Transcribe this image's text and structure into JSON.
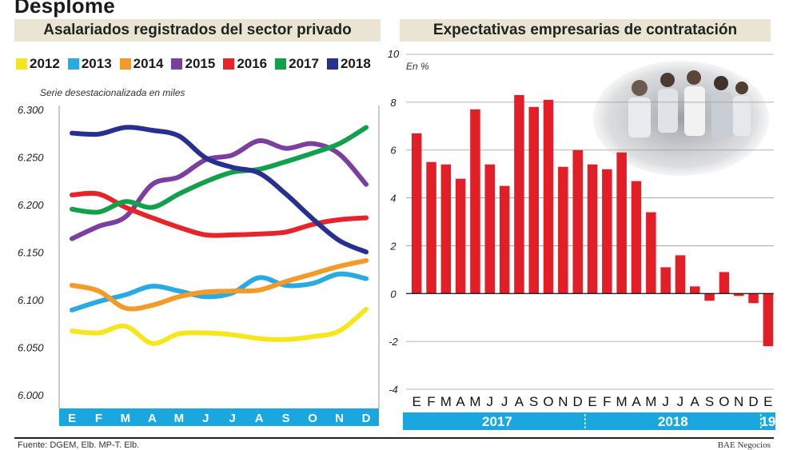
{
  "page": {
    "title": "Desplome",
    "footer_source": "Fuente: DGEM, Elb. MP-T. Elb.",
    "footer_brand": "BAE Negocios"
  },
  "chart_data": [
    {
      "type": "line",
      "title": "Asalariados registrados del sector privado",
      "subtitle": "Serie desestacionalizada en miles",
      "categories": [
        "E",
        "F",
        "M",
        "A",
        "M",
        "J",
        "J",
        "A",
        "S",
        "O",
        "N",
        "D"
      ],
      "ylim": [
        6000,
        6300
      ],
      "yticks": [
        "6.000",
        "6.050",
        "6.100",
        "6.150",
        "6.200",
        "6.250",
        "6.300"
      ],
      "ytick_values": [
        6000,
        6050,
        6100,
        6150,
        6200,
        6250,
        6300
      ],
      "grid": false,
      "legend_position": "top",
      "series": [
        {
          "name": "2012",
          "color": "#f5e61d",
          "values": [
            6068,
            6066,
            6073,
            6055,
            6065,
            6066,
            6064,
            6060,
            6059,
            6062,
            6068,
            6091
          ]
        },
        {
          "name": "2013",
          "color": "#29aae2",
          "values": [
            6090,
            6099,
            6106,
            6115,
            6110,
            6104,
            6108,
            6124,
            6116,
            6118,
            6128,
            6123
          ]
        },
        {
          "name": "2014",
          "color": "#f39a28",
          "values": [
            6116,
            6110,
            6092,
            6095,
            6104,
            6109,
            6110,
            6111,
            6120,
            6128,
            6136,
            6142
          ]
        },
        {
          "name": "2015",
          "color": "#7b3fa0",
          "values": [
            6165,
            6178,
            6188,
            6222,
            6230,
            6248,
            6253,
            6268,
            6260,
            6265,
            6254,
            6222
          ]
        },
        {
          "name": "2016",
          "color": "#e8232a",
          "values": [
            6211,
            6212,
            6198,
            6187,
            6177,
            6169,
            6169,
            6170,
            6172,
            6180,
            6185,
            6187
          ]
        },
        {
          "name": "2017",
          "color": "#13a04a",
          "values": [
            6196,
            6193,
            6204,
            6198,
            6212,
            6225,
            6235,
            6238,
            6246,
            6255,
            6265,
            6282
          ]
        },
        {
          "name": "2018",
          "color": "#27308f",
          "values": [
            6276,
            6275,
            6282,
            6279,
            6273,
            6250,
            6240,
            6234,
            6212,
            6186,
            6163,
            6151
          ]
        }
      ]
    },
    {
      "type": "bar",
      "title": "Expectativas empresarias de contratación",
      "ylabel": "En %",
      "ylim": [
        -4,
        10
      ],
      "yticks": [
        "-4",
        "-2",
        "0",
        "2",
        "4",
        "6",
        "8",
        "10"
      ],
      "ytick_values": [
        -4,
        -2,
        0,
        2,
        4,
        6,
        8,
        10
      ],
      "grid": true,
      "bar_color": "#e21f26",
      "categories": [
        "E",
        "F",
        "M",
        "A",
        "M",
        "J",
        "J",
        "A",
        "S",
        "O",
        "N",
        "D",
        "E",
        "F",
        "M",
        "A",
        "M",
        "J",
        "J",
        "A",
        "S",
        "O",
        "N",
        "D",
        "E"
      ],
      "values": [
        6.7,
        5.5,
        5.4,
        4.8,
        7.7,
        5.4,
        4.5,
        8.3,
        7.8,
        8.1,
        5.3,
        6.0,
        5.4,
        5.2,
        5.9,
        4.7,
        3.4,
        1.1,
        1.6,
        0.3,
        -0.3,
        0.9,
        -0.1,
        -0.4,
        -2.2
      ],
      "year_groups": [
        {
          "label": "2017",
          "start": 0,
          "end": 11
        },
        {
          "label": "2018",
          "start": 12,
          "end": 23
        },
        {
          "label": "19",
          "start": 24,
          "end": 24
        }
      ]
    }
  ]
}
